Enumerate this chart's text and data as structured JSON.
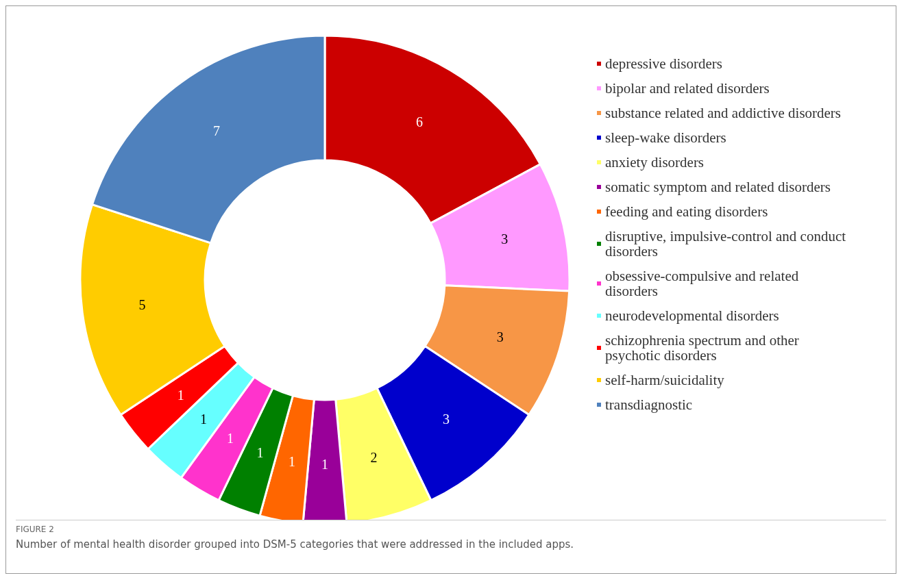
{
  "chart_data": {
    "type": "donut",
    "categories": [
      "depressive disorders",
      "bipolar and related disorders",
      "substance related and addictive disorders",
      "sleep-wake disorders",
      "anxiety disorders",
      "somatic symptom and related disorders",
      "feeding and eating disorders",
      "disruptive, impulsive-control and conduct disorders",
      "obsessive-compulsive and related disorders",
      "neurodevelopmental disorders",
      "schizophrenia spectrum and other psychotic disorders",
      "self-harm/suicidality",
      "transdiagnostic"
    ],
    "values": [
      6,
      3,
      3,
      3,
      2,
      1,
      1,
      1,
      1,
      1,
      1,
      5,
      7
    ],
    "colors": [
      "#cc0000",
      "#ff99ff",
      "#f79646",
      "#0000cc",
      "#ffff66",
      "#990099",
      "#ff6600",
      "#008000",
      "#ff33cc",
      "#66ffff",
      "#ff0000",
      "#ffcc00",
      "#4f81bd"
    ],
    "data_labels": true,
    "legend": "right",
    "annotations": [
      "FIGURE 2",
      "Number of mental health disorder grouped into DSM-5 categories that were addressed in the included apps."
    ]
  }
}
